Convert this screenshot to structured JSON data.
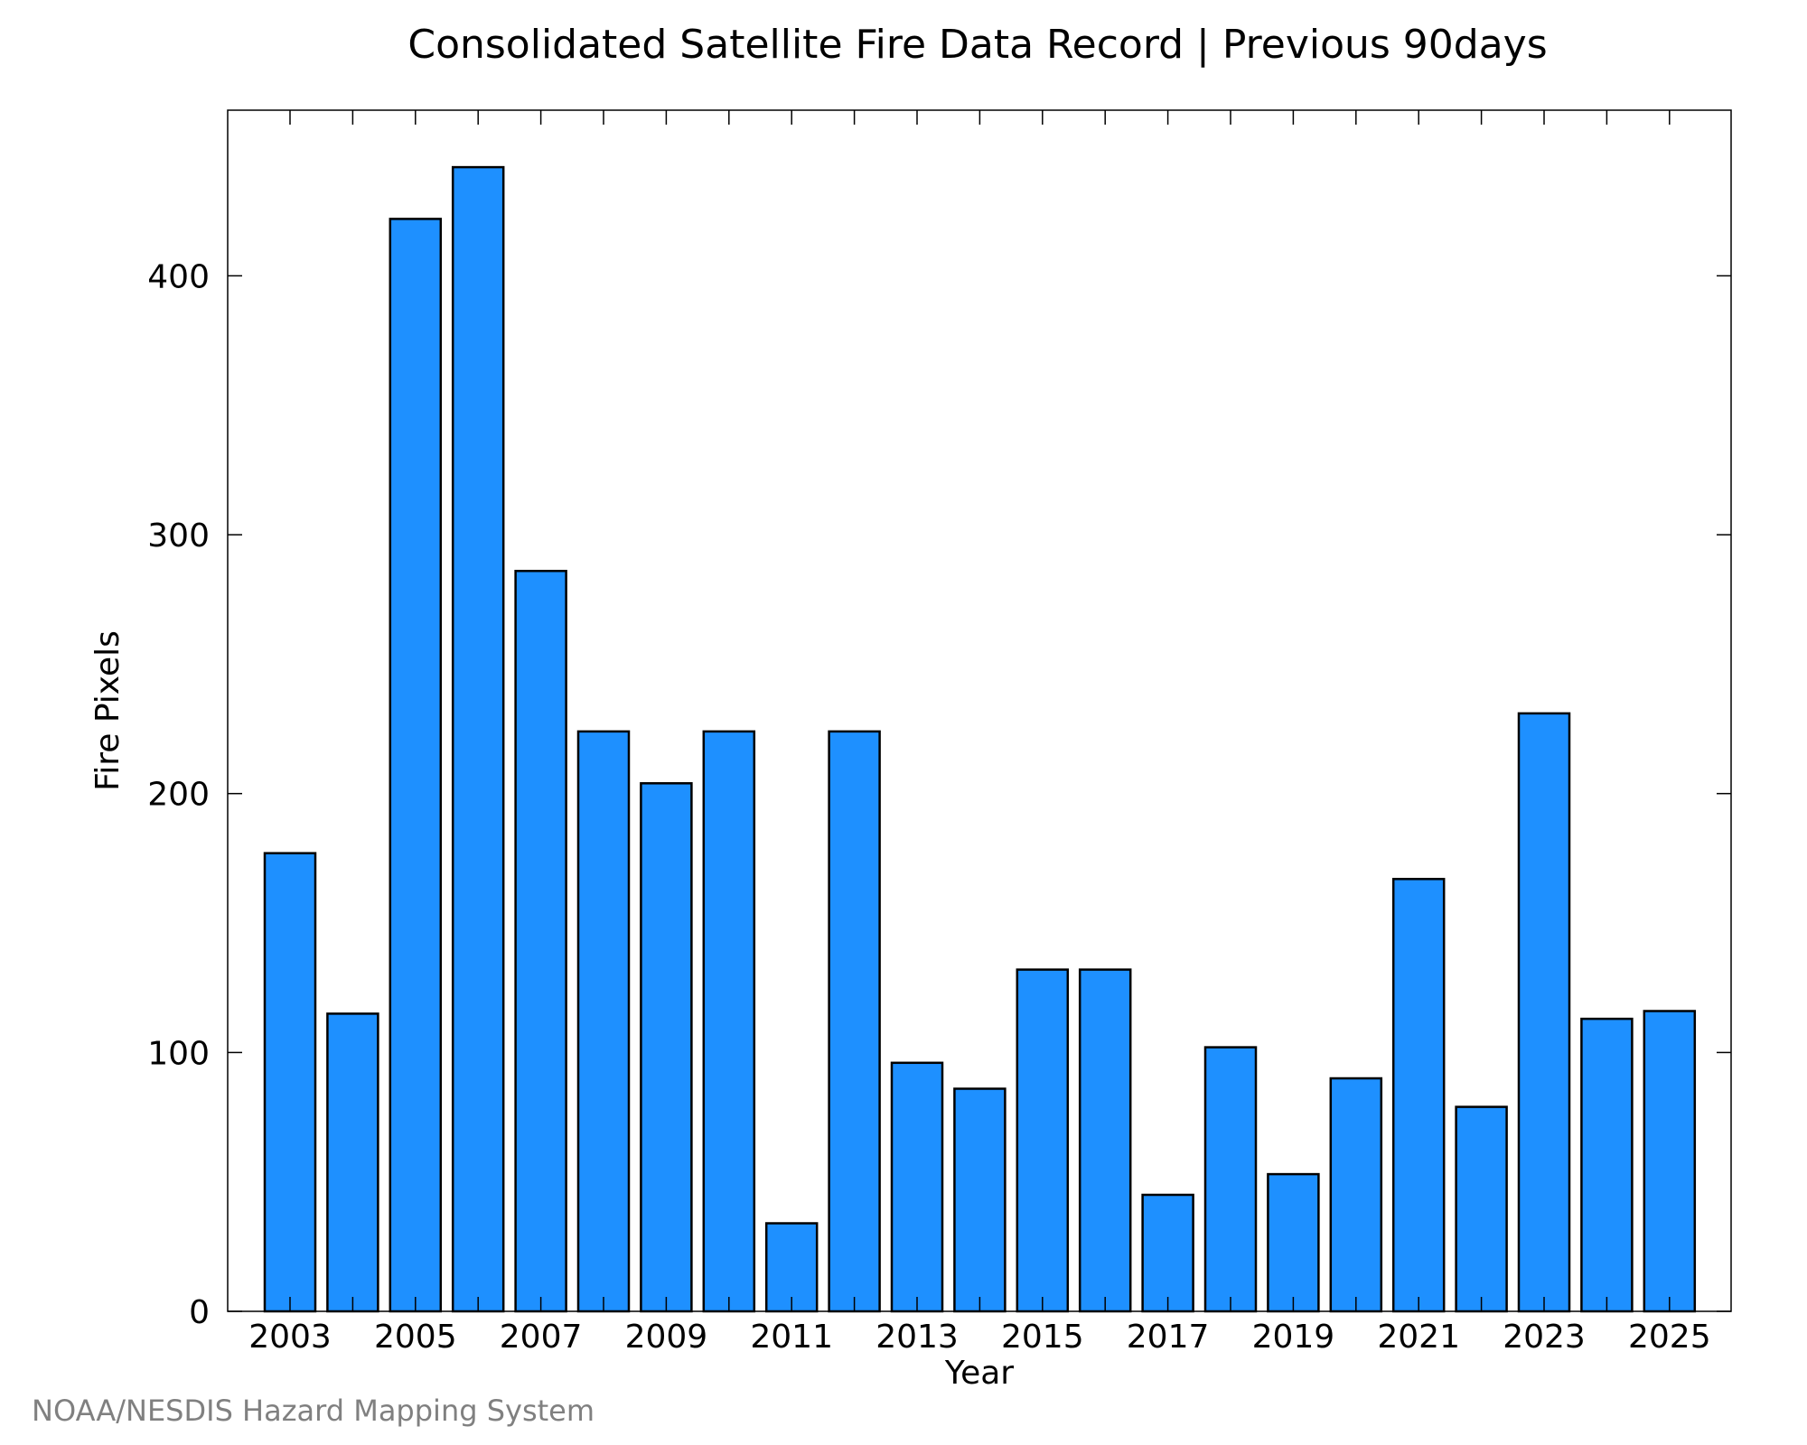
{
  "chart_data": {
    "type": "bar",
    "title": "Consolidated Satellite Fire Data Record | Previous 90days",
    "xlabel": "Year",
    "ylabel": "Fire Pixels",
    "categories": [
      "2003",
      "2004",
      "2005",
      "2006",
      "2007",
      "2008",
      "2009",
      "2010",
      "2011",
      "2012",
      "2013",
      "2014",
      "2015",
      "2016",
      "2017",
      "2018",
      "2019",
      "2020",
      "2021",
      "2022",
      "2023",
      "2024",
      "2025"
    ],
    "values": [
      177,
      115,
      422,
      442,
      286,
      224,
      204,
      224,
      34,
      224,
      96,
      86,
      132,
      132,
      45,
      102,
      53,
      90,
      167,
      79,
      231,
      113,
      116
    ],
    "x_tick_labels": [
      "2003",
      "2005",
      "2007",
      "2009",
      "2011",
      "2013",
      "2015",
      "2017",
      "2019",
      "2021",
      "2023",
      "2025"
    ],
    "y_ticks": [
      0,
      100,
      200,
      300,
      400
    ],
    "ylim": [
      0,
      464
    ],
    "bar_color": "#1e90ff",
    "bar_edge_color": "#000000",
    "grid": false,
    "legend": false
  },
  "footer": {
    "credit": "NOAA/NESDIS Hazard Mapping System"
  }
}
